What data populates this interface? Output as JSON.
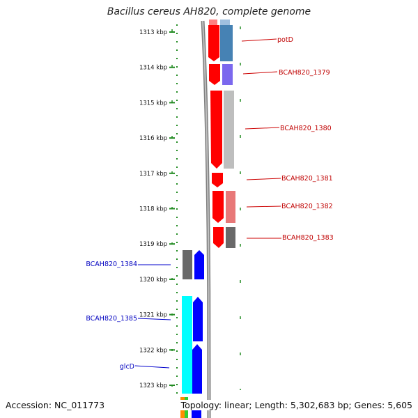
{
  "title": "Bacillus cereus AH820, complete genome",
  "footer": {
    "accession": "Accession: NC_011773",
    "summary": "Topology: linear; Length: 5,302,683 bp; Genes: 5,605"
  },
  "ruler": {
    "ticks": [
      "1313 kbp",
      "1314 kbp",
      "1315 kbp",
      "1316 kbp",
      "1317 kbp",
      "1318 kbp",
      "1319 kbp",
      "1320 kbp",
      "1321 kbp",
      "1322 kbp",
      "1323 kbp"
    ]
  },
  "colors": {
    "right_strand_label": "#c00000",
    "left_strand_label": "#0000c0",
    "leader_right": "#cc0000",
    "leader_left": "#0000cc",
    "ruler_dots": "#228b22",
    "backbone": "#888888"
  },
  "labels_right": [
    "potD",
    "BCAH820_1379",
    "BCAH820_1380",
    "BCAH820_1381",
    "BCAH820_1382",
    "BCAH820_1383"
  ],
  "labels_left": [
    "BCAH820_1384",
    "BCAH820_1385",
    "glcD"
  ]
}
